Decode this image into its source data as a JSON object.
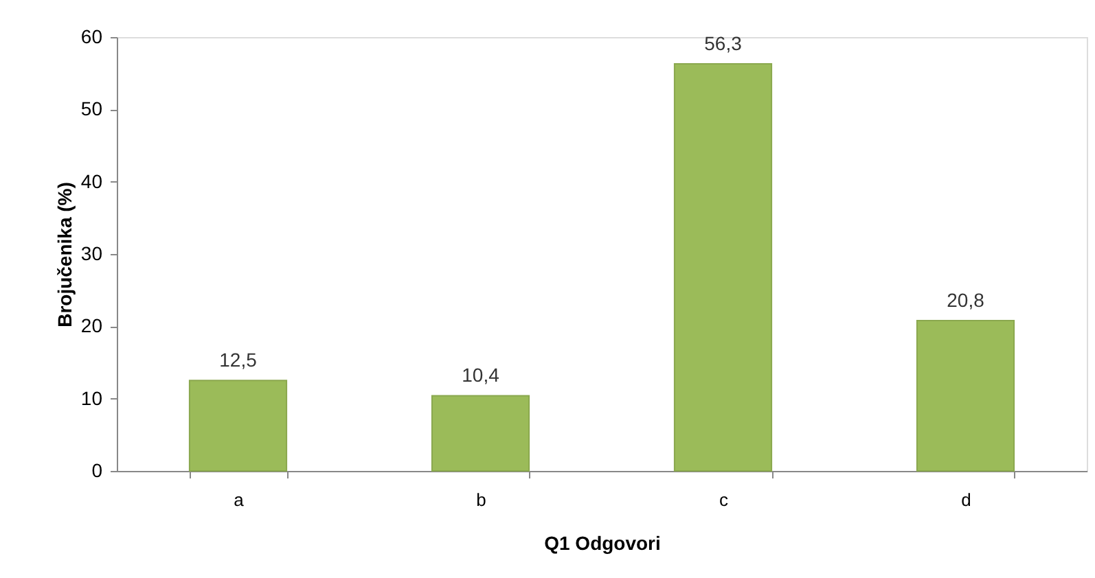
{
  "chart_data": {
    "type": "bar",
    "xlabel": "Q1 Odgovori",
    "ylabel": "Brojučenika (%)",
    "categories": [
      "a",
      "b",
      "c",
      "d"
    ],
    "values": [
      12.5,
      10.4,
      56.3,
      20.8
    ],
    "value_labels": [
      "12,5",
      "10,4",
      "56,3",
      "20,8"
    ],
    "color": "#9bbb59",
    "ylim": [
      0,
      60
    ],
    "yticks": [
      0,
      10,
      20,
      30,
      40,
      50,
      60
    ],
    "grid": false
  }
}
